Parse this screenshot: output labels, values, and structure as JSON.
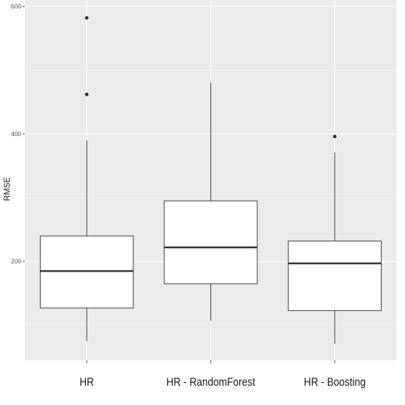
{
  "chart_data": {
    "type": "boxplot",
    "title": "",
    "xlabel": "",
    "ylabel": "RMSE",
    "ylim": [
      45,
      610
    ],
    "yticks": [
      200,
      400,
      600
    ],
    "grid": true,
    "categories": [
      "HR",
      "HR - RandomForest",
      "HR - Boosting"
    ],
    "boxes": [
      {
        "category": "HR",
        "whisker_low": 75,
        "q1": 127,
        "median": 185,
        "q3": 240,
        "whisker_high": 390,
        "outliers": [
          462,
          582
        ]
      },
      {
        "category": "HR - RandomForest",
        "whisker_low": 107,
        "q1": 165,
        "median": 222,
        "q3": 295,
        "whisker_high": 481,
        "outliers": []
      },
      {
        "category": "HR - Boosting",
        "whisker_low": 71,
        "q1": 123,
        "median": 197,
        "q3": 232,
        "whisker_high": 371,
        "outliers": [
          396
        ]
      }
    ],
    "colors": {
      "panel": "#ebebeb",
      "grid": "#ffffff",
      "box_fill": "#ffffff",
      "box_line": "#333333",
      "point": "#333333"
    }
  }
}
